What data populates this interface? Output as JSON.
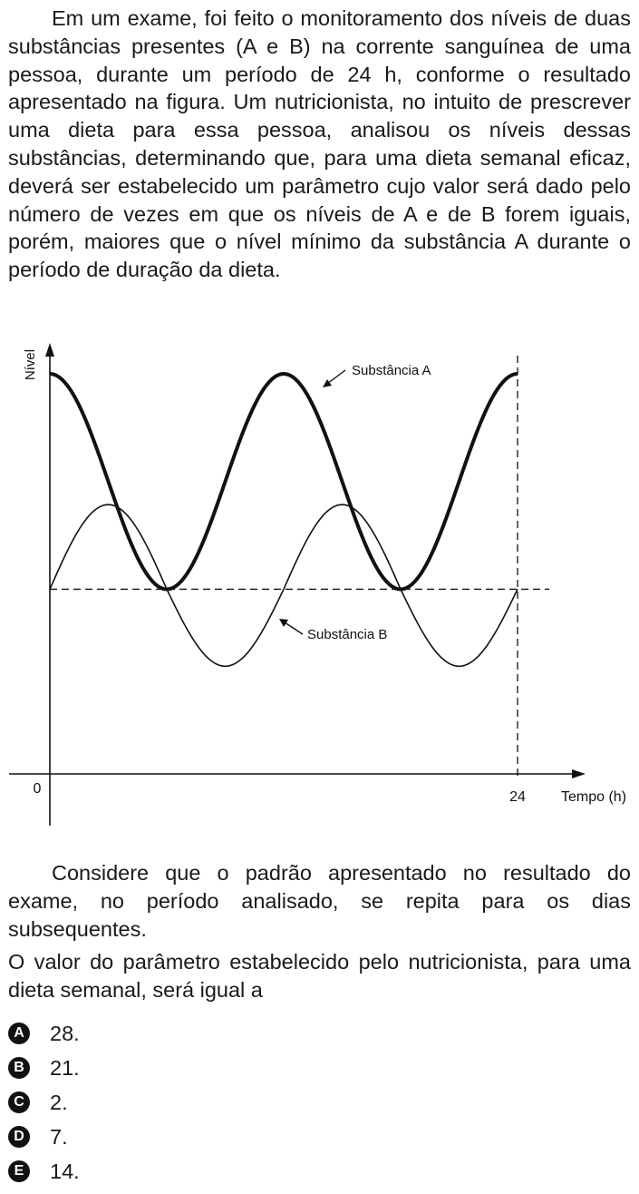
{
  "question": {
    "intro": "Em um exame, foi feito o monitoramento dos níveis de duas substâncias presentes (A e B) na corrente sanguínea de uma pessoa, durante um período de 24 h, conforme o resultado apresentado na figura. Um nutricionista, no intuito de prescrever uma dieta para essa pessoa, analisou os níveis dessas substâncias, determinando que, para uma dieta semanal eficaz, deverá ser estabelecido um parâmetro cujo valor será dado pelo número de vezes em que os níveis de A e de B forem iguais, porém, maiores que o nível mínimo da substância A durante o período de duração da dieta.",
    "consider": "Considere que o padrão apresentado no resultado do exame, no período analisado, se repita para os dias subsequentes.",
    "prompt": "O valor do parâmetro estabelecido pelo nutricionista, para uma dieta semanal, será igual a",
    "options": [
      {
        "letter": "A",
        "text": "28."
      },
      {
        "letter": "B",
        "text": "21."
      },
      {
        "letter": "C",
        "text": "2."
      },
      {
        "letter": "D",
        "text": "7."
      },
      {
        "letter": "E",
        "text": "14."
      }
    ]
  },
  "chart_data": {
    "type": "line",
    "ylabel": "Nível",
    "xlabel": "Tempo (h)",
    "xlim": [
      0,
      24
    ],
    "ylim": [
      0,
      10
    ],
    "x_tick_labels": [
      {
        "x": 0,
        "label": "0"
      },
      {
        "x": 24,
        "label": "24"
      }
    ],
    "reference_lines": [
      {
        "orientation": "horizontal",
        "y": 4.8,
        "style": "dashed"
      },
      {
        "orientation": "vertical",
        "x": 24,
        "style": "dashed"
      }
    ],
    "series": [
      {
        "name": "Substância A",
        "style": "thick",
        "x": [
          0,
          6,
          12,
          18,
          24
        ],
        "y": [
          10.4,
          4.8,
          10.4,
          4.8,
          10.4
        ]
      },
      {
        "name": "Substância B",
        "style": "thin",
        "x": [
          0,
          3,
          6,
          9,
          12,
          15,
          18,
          21,
          24
        ],
        "y": [
          4.8,
          7.0,
          4.8,
          2.8,
          4.8,
          7.0,
          4.8,
          2.8,
          4.8
        ]
      }
    ],
    "colors": {
      "line": "#111111"
    }
  }
}
